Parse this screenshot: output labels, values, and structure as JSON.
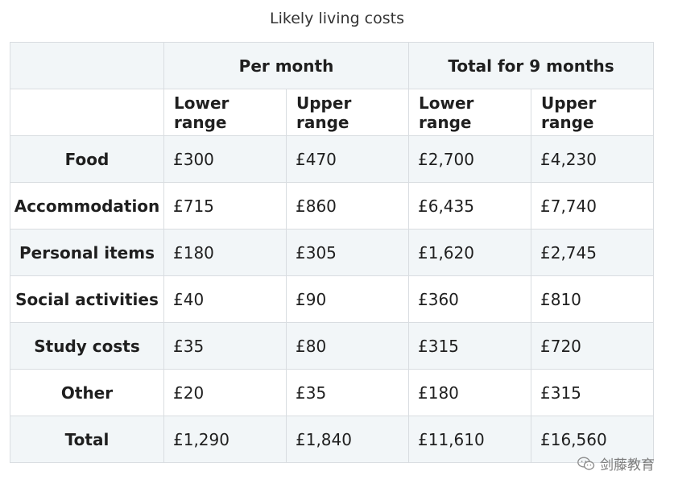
{
  "caption": "Likely living costs",
  "group_headers": {
    "per_month": "Per month",
    "total_9": "Total for 9 months"
  },
  "sub_headers": [
    "Lower range",
    "Upper range",
    "Lower range",
    "Upper range"
  ],
  "rows": [
    {
      "label": "Food",
      "values": [
        "£300",
        "£470",
        "£2,700",
        "£4,230"
      ]
    },
    {
      "label": "Accommodation",
      "values": [
        "£715",
        "£860",
        "£6,435",
        "£7,740"
      ]
    },
    {
      "label": "Personal items",
      "values": [
        "£180",
        "£305",
        "£1,620",
        "£2,745"
      ]
    },
    {
      "label": "Social activities",
      "values": [
        "£40",
        "£90",
        "£360",
        "£810"
      ]
    },
    {
      "label": "Study costs",
      "values": [
        "£35",
        "£80",
        "£315",
        "£720"
      ]
    },
    {
      "label": "Other",
      "values": [
        "£20",
        "£35",
        "£180",
        "£315"
      ]
    },
    {
      "label": "Total",
      "values": [
        "£1,290",
        "£1,840",
        "£11,610",
        "£16,560"
      ]
    }
  ],
  "watermark": {
    "text": "剑藤教育",
    "icon": "wechat-icon"
  }
}
